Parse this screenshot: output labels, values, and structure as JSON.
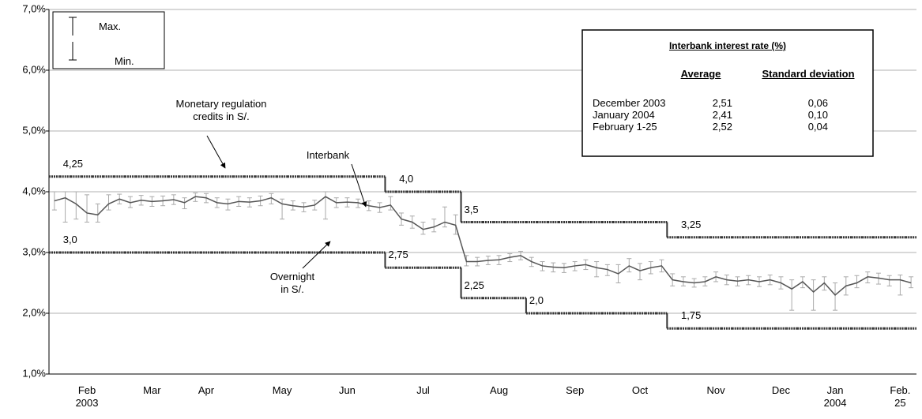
{
  "chart_data": {
    "type": "line",
    "ylim": [
      1,
      7
    ],
    "yticks": [
      {
        "value": 1,
        "label": "1,0%"
      },
      {
        "value": 2,
        "label": "2,0%"
      },
      {
        "value": 3,
        "label": "3,0%"
      },
      {
        "value": 4,
        "label": "4,0%"
      },
      {
        "value": 5,
        "label": "5,0%"
      },
      {
        "value": 6,
        "label": "6,0%"
      },
      {
        "value": 7,
        "label": "7,0%"
      }
    ],
    "grid": true,
    "categories": [
      null,
      null,
      null,
      "Feb\n2003",
      null,
      null,
      null,
      null,
      null,
      "Mar",
      null,
      null,
      null,
      null,
      "Apr",
      null,
      null,
      null,
      null,
      null,
      null,
      "May",
      null,
      null,
      null,
      null,
      null,
      "Jun",
      null,
      null,
      null,
      null,
      null,
      null,
      "Jul",
      null,
      null,
      null,
      null,
      null,
      null,
      "Aug",
      null,
      null,
      null,
      null,
      null,
      null,
      "Sep",
      null,
      null,
      null,
      null,
      null,
      "Oct",
      null,
      null,
      null,
      null,
      null,
      null,
      "Nov",
      null,
      null,
      null,
      null,
      null,
      "Dec",
      null,
      null,
      null,
      null,
      "Jan\n2004",
      null,
      null,
      null,
      null,
      null,
      "Feb. 25",
      null
    ],
    "legend": {
      "max": "Max.",
      "min": "Min."
    },
    "series": [
      {
        "name": "Interbank",
        "color": "#555555",
        "values": [
          3.85,
          3.9,
          3.8,
          3.65,
          3.62,
          3.8,
          3.88,
          3.82,
          3.86,
          3.84,
          3.85,
          3.87,
          3.82,
          3.92,
          3.9,
          3.82,
          3.8,
          3.84,
          3.83,
          3.85,
          3.9,
          3.8,
          3.77,
          3.75,
          3.78,
          3.92,
          3.82,
          3.83,
          3.82,
          3.77,
          3.74,
          3.78,
          3.55,
          3.5,
          3.38,
          3.42,
          3.5,
          3.45,
          2.85,
          2.85,
          2.87,
          2.88,
          2.92,
          2.95,
          2.85,
          2.78,
          2.76,
          2.75,
          2.78,
          2.8,
          2.75,
          2.72,
          2.65,
          2.78,
          2.7,
          2.75,
          2.78,
          2.55,
          2.52,
          2.5,
          2.52,
          2.6,
          2.55,
          2.53,
          2.55,
          2.52,
          2.55,
          2.5,
          2.4,
          2.52,
          2.35,
          2.5,
          2.3,
          2.45,
          2.5,
          2.6,
          2.58,
          2.55,
          2.55,
          2.5
        ],
        "max": [
          4.0,
          4.0,
          4.0,
          3.95,
          3.8,
          3.95,
          3.96,
          3.92,
          3.94,
          3.92,
          3.93,
          3.95,
          3.9,
          3.98,
          3.97,
          3.9,
          3.88,
          3.92,
          3.9,
          3.93,
          3.97,
          3.88,
          3.85,
          3.82,
          3.86,
          4.0,
          3.9,
          3.9,
          3.88,
          3.85,
          3.82,
          3.92,
          3.65,
          3.6,
          3.5,
          3.55,
          3.75,
          3.62,
          2.95,
          2.92,
          2.94,
          2.95,
          2.98,
          3.02,
          2.92,
          2.85,
          2.83,
          2.82,
          2.85,
          2.88,
          2.85,
          2.8,
          2.8,
          2.9,
          2.82,
          2.85,
          2.88,
          2.65,
          2.6,
          2.57,
          2.6,
          2.68,
          2.63,
          2.6,
          2.62,
          2.6,
          2.63,
          2.6,
          2.55,
          2.6,
          2.55,
          2.6,
          2.5,
          2.6,
          2.62,
          2.68,
          2.66,
          2.62,
          2.63,
          2.6
        ],
        "min": [
          3.7,
          3.5,
          3.55,
          3.5,
          3.5,
          3.7,
          3.8,
          3.74,
          3.78,
          3.76,
          3.77,
          3.79,
          3.72,
          3.84,
          3.82,
          3.74,
          3.7,
          3.76,
          3.75,
          3.77,
          3.8,
          3.55,
          3.7,
          3.67,
          3.7,
          3.55,
          3.74,
          3.75,
          3.74,
          3.69,
          3.66,
          3.7,
          3.45,
          3.4,
          3.3,
          3.34,
          3.42,
          3.3,
          2.78,
          2.78,
          2.8,
          2.8,
          2.85,
          2.88,
          2.77,
          2.7,
          2.68,
          2.67,
          2.7,
          2.72,
          2.6,
          2.62,
          2.5,
          2.68,
          2.55,
          2.65,
          2.68,
          2.45,
          2.45,
          2.43,
          2.45,
          2.52,
          2.47,
          2.45,
          2.47,
          2.44,
          2.47,
          2.4,
          2.05,
          2.42,
          2.05,
          2.38,
          2.05,
          2.3,
          2.42,
          2.5,
          2.48,
          2.45,
          2.3,
          2.42
        ]
      },
      {
        "name": "Monetary regulation\ncredits in S/.",
        "color": "#333333",
        "step": true,
        "values": [
          4.25,
          4.25,
          4.25,
          4.25,
          4.25,
          4.25,
          4.25,
          4.25,
          4.25,
          4.25,
          4.25,
          4.25,
          4.25,
          4.25,
          4.25,
          4.25,
          4.25,
          4.25,
          4.25,
          4.25,
          4.25,
          4.25,
          4.25,
          4.25,
          4.25,
          4.25,
          4.25,
          4.25,
          4.25,
          4.25,
          4.25,
          4.0,
          4.0,
          4.0,
          4.0,
          4.0,
          4.0,
          4.0,
          3.5,
          3.5,
          3.5,
          3.5,
          3.5,
          3.5,
          3.5,
          3.5,
          3.5,
          3.5,
          3.5,
          3.5,
          3.5,
          3.5,
          3.5,
          3.5,
          3.5,
          3.5,
          3.5,
          3.25,
          3.25,
          3.25,
          3.25,
          3.25,
          3.25,
          3.25,
          3.25,
          3.25,
          3.25,
          3.25,
          3.25,
          3.25,
          3.25,
          3.25,
          3.25,
          3.25,
          3.25,
          3.25,
          3.25,
          3.25,
          3.25,
          3.25
        ],
        "value_labels": [
          null,
          "4,25",
          null,
          null,
          null,
          null,
          null,
          null,
          null,
          null,
          null,
          null,
          null,
          null,
          null,
          null,
          null,
          null,
          null,
          null,
          null,
          null,
          null,
          null,
          null,
          null,
          null,
          null,
          null,
          null,
          null,
          null,
          "4,0",
          null,
          null,
          null,
          null,
          null,
          "3,5",
          null,
          null,
          null,
          null,
          null,
          null,
          null,
          null,
          null,
          null,
          null,
          null,
          null,
          null,
          null,
          null,
          null,
          null,
          null,
          "3,25",
          null,
          null,
          null,
          null,
          null,
          null,
          null,
          null,
          null,
          null,
          null,
          null,
          null,
          null,
          null,
          null,
          null,
          null,
          null,
          null,
          null
        ]
      },
      {
        "name": "Overnight\nin S/.",
        "color": "#333333",
        "step": true,
        "values": [
          3.0,
          3.0,
          3.0,
          3.0,
          3.0,
          3.0,
          3.0,
          3.0,
          3.0,
          3.0,
          3.0,
          3.0,
          3.0,
          3.0,
          3.0,
          3.0,
          3.0,
          3.0,
          3.0,
          3.0,
          3.0,
          3.0,
          3.0,
          3.0,
          3.0,
          3.0,
          3.0,
          3.0,
          3.0,
          3.0,
          3.0,
          2.75,
          2.75,
          2.75,
          2.75,
          2.75,
          2.75,
          2.75,
          2.25,
          2.25,
          2.25,
          2.25,
          2.25,
          2.25,
          2.0,
          2.0,
          2.0,
          2.0,
          2.0,
          2.0,
          2.0,
          2.0,
          2.0,
          2.0,
          2.0,
          2.0,
          2.0,
          1.75,
          1.75,
          1.75,
          1.75,
          1.75,
          1.75,
          1.75,
          1.75,
          1.75,
          1.75,
          1.75,
          1.75,
          1.75,
          1.75,
          1.75,
          1.75,
          1.75,
          1.75,
          1.75,
          1.75,
          1.75,
          1.75,
          1.75
        ],
        "value_labels": [
          null,
          "3,0",
          null,
          null,
          null,
          null,
          null,
          null,
          null,
          null,
          null,
          null,
          null,
          null,
          null,
          null,
          null,
          null,
          null,
          null,
          null,
          null,
          null,
          null,
          null,
          null,
          null,
          null,
          null,
          null,
          null,
          "2,75",
          null,
          null,
          null,
          null,
          null,
          null,
          "2,25",
          null,
          null,
          null,
          null,
          null,
          "2,0",
          null,
          null,
          null,
          null,
          null,
          null,
          null,
          null,
          null,
          null,
          null,
          null,
          null,
          "1,75",
          null,
          null,
          null,
          null,
          null,
          null,
          null,
          null,
          null,
          null,
          null,
          null,
          null,
          null,
          null,
          null,
          null,
          null,
          null,
          null,
          null
        ]
      }
    ],
    "table": {
      "title": "Interbank interest rate (%)",
      "columns": [
        "Average",
        "Standard deviation"
      ],
      "rows": [
        [
          "December 2003",
          "2,51",
          "0,06"
        ],
        [
          "January 2004",
          "2,41",
          "0,10"
        ],
        [
          "February 1-25",
          "2,52",
          "0,04"
        ]
      ]
    }
  }
}
